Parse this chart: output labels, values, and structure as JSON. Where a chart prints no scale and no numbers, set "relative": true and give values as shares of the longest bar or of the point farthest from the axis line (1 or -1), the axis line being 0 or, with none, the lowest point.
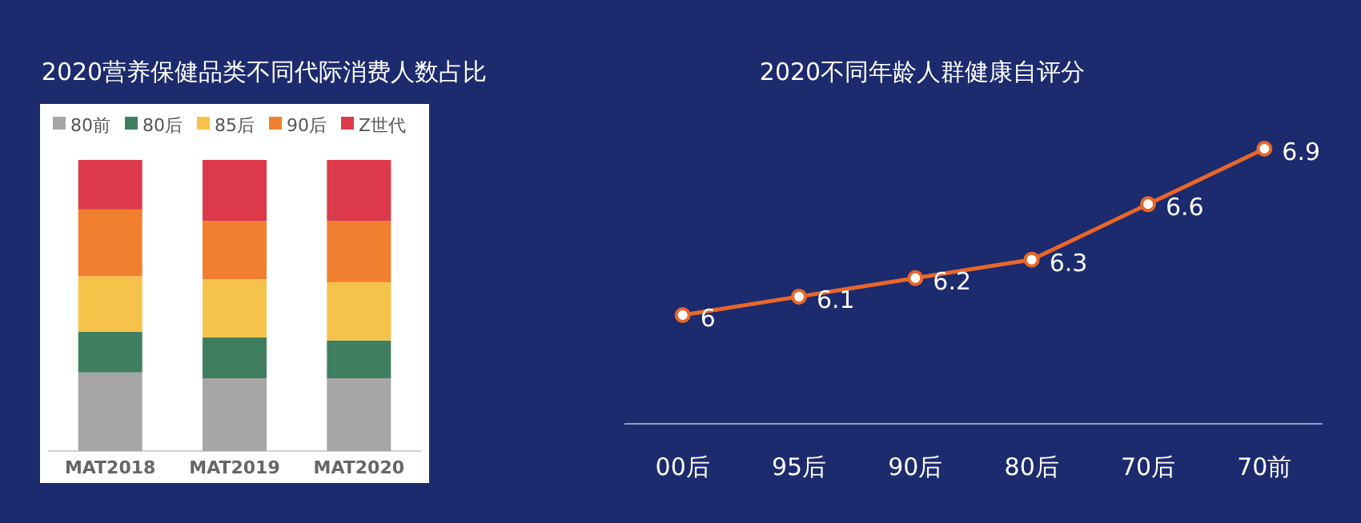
{
  "chart_data": [
    {
      "type": "bar",
      "title": "2020营养保健品类不同代际消费人数占比",
      "categories": [
        "MAT2018",
        "MAT2019",
        "MAT2020"
      ],
      "stacked": true,
      "relative": true,
      "legend": "top",
      "series": [
        {
          "name": "80前",
          "color": "#a6a6a6",
          "values": [
            0.27,
            0.25,
            0.25
          ]
        },
        {
          "name": "80后",
          "color": "#3f7f5f",
          "values": [
            0.14,
            0.14,
            0.13
          ]
        },
        {
          "name": "85后",
          "color": "#f6c34a",
          "values": [
            0.19,
            0.2,
            0.2
          ]
        },
        {
          "name": "90后",
          "color": "#f08030",
          "values": [
            0.23,
            0.2,
            0.21
          ]
        },
        {
          "name": "Z世代",
          "color": "#dc3a4a",
          "values": [
            0.17,
            0.21,
            0.21
          ]
        }
      ]
    },
    {
      "type": "line",
      "title": "2020不同年龄人群健康自评分",
      "categories": [
        "00后",
        "95后",
        "90后",
        "80后",
        "70后",
        "70前"
      ],
      "data_labels": true,
      "marker": "circle",
      "series": [
        {
          "color": "#e8672a",
          "values": [
            6,
            6.1,
            6.2,
            6.3,
            6.6,
            6.9
          ]
        }
      ]
    }
  ]
}
